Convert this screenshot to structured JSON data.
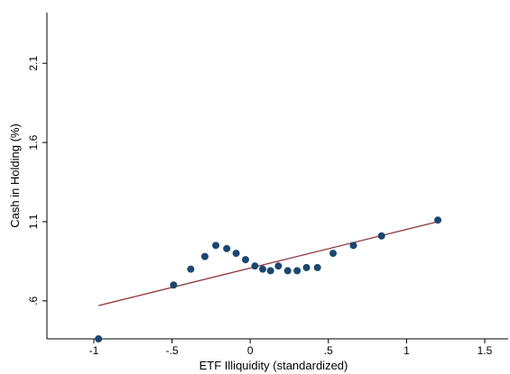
{
  "chart_data": {
    "type": "scatter",
    "title": "",
    "xlabel": "ETF Illiquidity (standardized)",
    "ylabel": "Cash in Holding (%)",
    "xlim": [
      -1.3,
      1.65
    ],
    "ylim": [
      0.36,
      2.42
    ],
    "x_ticks": [
      -1,
      -0.5,
      0,
      0.5,
      1,
      1.5
    ],
    "x_tick_labels": [
      "-1",
      "-.5",
      "0",
      ".5",
      "1",
      "1.5"
    ],
    "y_ticks": [
      0.6,
      1.1,
      1.6,
      2.1
    ],
    "y_tick_labels": [
      ".6",
      "1.1",
      "1.6",
      "2.1"
    ],
    "grid": false,
    "legend": "none",
    "colors": {
      "points": "#1a476f",
      "fit_line": "#90353b"
    },
    "series": [
      {
        "kind": "scatter",
        "x": [
          -0.97,
          -0.49,
          -0.38,
          -0.29,
          -0.22,
          -0.15,
          -0.09,
          -0.03,
          0.03,
          0.08,
          0.13,
          0.18,
          0.24,
          0.3,
          0.36,
          0.43,
          0.53,
          0.66,
          0.84,
          1.2
        ],
        "y": [
          0.36,
          0.7,
          0.8,
          0.88,
          0.95,
          0.93,
          0.9,
          0.86,
          0.82,
          0.8,
          0.79,
          0.82,
          0.79,
          0.79,
          0.81,
          0.81,
          0.9,
          0.95,
          1.01,
          1.11
        ]
      },
      {
        "kind": "line",
        "x": [
          -0.97,
          1.2
        ],
        "y": [
          0.57,
          1.1
        ]
      }
    ]
  }
}
